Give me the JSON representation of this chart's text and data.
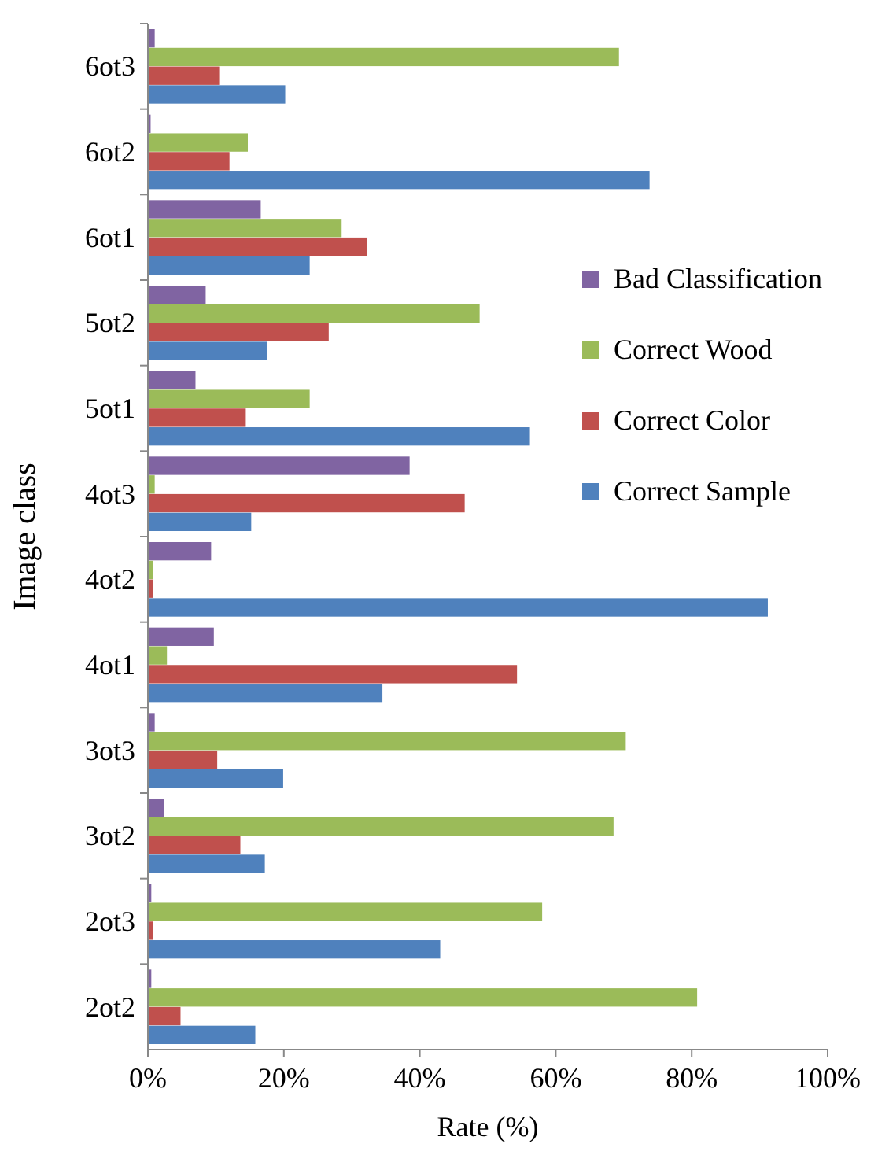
{
  "chart_data": {
    "type": "bar",
    "orientation": "horizontal",
    "xlabel": "Rate (%)",
    "ylabel": "Image class",
    "categories": [
      "6ot3",
      "6ot2",
      "6ot1",
      "5ot2",
      "5ot1",
      "4ot3",
      "4ot2",
      "4ot1",
      "3ot3",
      "3ot2",
      "2ot3",
      "2ot2"
    ],
    "series": [
      {
        "name": "Bad Classification",
        "color": "#8064a2",
        "values": [
          1,
          0.4,
          16.6,
          8.5,
          7,
          38.5,
          9.3,
          9.7,
          1,
          2.4,
          0.5,
          0.5
        ]
      },
      {
        "name": "Correct Wood",
        "color": "#9bbb59",
        "values": [
          69.3,
          14.7,
          28.5,
          48.8,
          23.8,
          1,
          0.7,
          2.8,
          70.3,
          68.5,
          58,
          80.8
        ]
      },
      {
        "name": "Correct Color",
        "color": "#c0504d",
        "values": [
          10.6,
          12,
          32.2,
          26.6,
          14.4,
          46.6,
          0.7,
          54.3,
          10.2,
          13.6,
          0.7,
          4.8
        ]
      },
      {
        "name": "Correct Sample",
        "color": "#4f81bd",
        "values": [
          20.2,
          73.8,
          23.8,
          17.5,
          56.2,
          15.2,
          91.2,
          34.5,
          19.9,
          17.2,
          43,
          15.8
        ]
      }
    ],
    "xlim": [
      0,
      100
    ],
    "xticks": [
      {
        "value": 0,
        "label": "0%"
      },
      {
        "value": 20,
        "label": "20%"
      },
      {
        "value": 40,
        "label": "40%"
      },
      {
        "value": 60,
        "label": "60%"
      },
      {
        "value": 80,
        "label": "80%"
      },
      {
        "value": 100,
        "label": "100%"
      }
    ],
    "legend": "right",
    "grid": false
  }
}
